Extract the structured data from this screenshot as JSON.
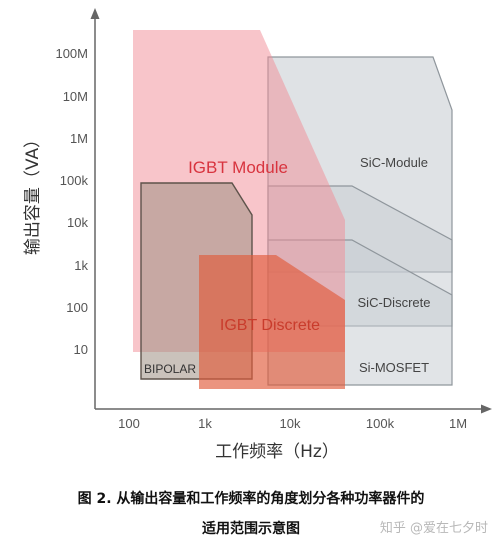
{
  "figure": {
    "y_axis_title": "输出容量（VA）",
    "x_axis_title": "工作频率（Hz）",
    "y_ticks": [
      "100M",
      "10M",
      "1M",
      "100k",
      "10k",
      "1k",
      "100",
      "10"
    ],
    "x_ticks": [
      "100",
      "1k",
      "10k",
      "100k",
      "1M"
    ],
    "regions": [
      {
        "key": "igbt_module",
        "label": "IGBT Module",
        "fill": "#f28b95",
        "label_color": "#d8343f"
      },
      {
        "key": "igbt_discrete",
        "label": "IGBT Discrete",
        "fill": "#e05a3a",
        "label_color": "#c93c2c"
      },
      {
        "key": "bipolar",
        "label": "BIPOLAR",
        "fill": "#9e8f83",
        "label_color": "#333333"
      },
      {
        "key": "sic_module",
        "label": "SiC-Module",
        "fill": "#c9ced3",
        "label_color": "#444444"
      },
      {
        "key": "sic_discrete",
        "label": "SiC-Discrete",
        "fill": "#c9ced3",
        "label_color": "#444444"
      },
      {
        "key": "si_mosfet",
        "label": "Si-MOSFET",
        "fill": "#c9ced3",
        "label_color": "#444444"
      }
    ]
  },
  "caption": {
    "line1": "图 2. 从输出容量和工作频率的角度划分各种功率器件的",
    "line2": "适用范围示意图"
  },
  "watermark": "知乎 @爱在七夕时"
}
